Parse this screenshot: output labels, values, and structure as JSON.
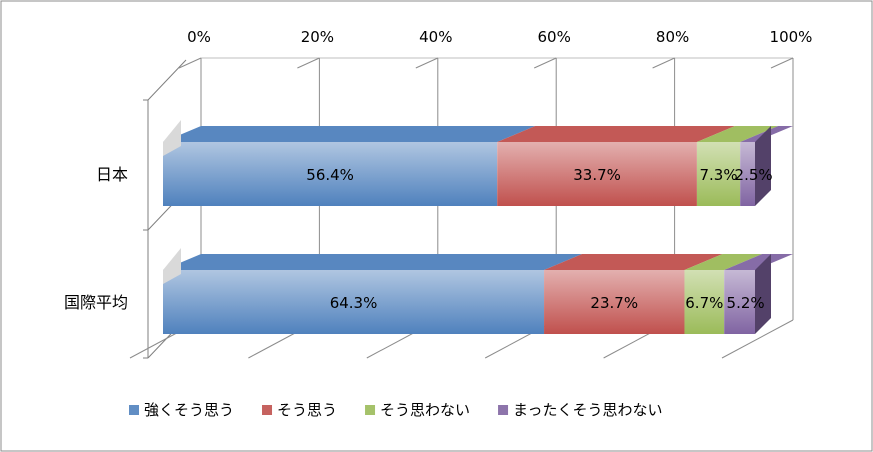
{
  "chart_data": {
    "type": "bar",
    "orientation": "horizontal",
    "stacked": "percent",
    "three_d": true,
    "categories": [
      "日本",
      "国際平均"
    ],
    "series": [
      {
        "name": "強くそう思う",
        "values": [
          56.4,
          64.3
        ],
        "labels": [
          "56.4%",
          "64.3%"
        ],
        "color": "#4f81bd"
      },
      {
        "name": "そう思う",
        "values": [
          33.7,
          23.7
        ],
        "labels": [
          "33.7%",
          "23.7%"
        ],
        "color": "#c0504d"
      },
      {
        "name": "そう思わない",
        "values": [
          7.3,
          6.7
        ],
        "labels": [
          "7.3%",
          "6.7%"
        ],
        "color": "#9bbb59"
      },
      {
        "name": "まったくそう思わない",
        "values": [
          2.5,
          5.2
        ],
        "labels": [
          "2.5%",
          "5.2%"
        ],
        "color": "#8064a2"
      }
    ],
    "x_ticks": [
      "0%",
      "20%",
      "40%",
      "60%",
      "80%",
      "100%"
    ],
    "xlim": [
      0,
      100
    ],
    "grid": true,
    "legend_position": "bottom"
  }
}
